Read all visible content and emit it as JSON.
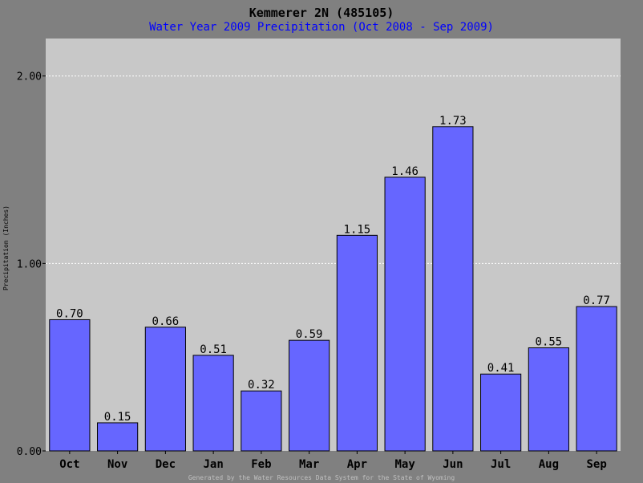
{
  "chart_data": {
    "type": "bar",
    "title": "Kemmerer 2N (485105)",
    "subtitle": "Water Year 2009 Precipitation (Oct 2008 - Sep 2009)",
    "ylabel": "Precipitation (Inches)",
    "footer": "Generated by the Water Resources Data System for the State of Wyoming",
    "categories": [
      "Oct",
      "Nov",
      "Dec",
      "Jan",
      "Feb",
      "Mar",
      "Apr",
      "May",
      "Jun",
      "Jul",
      "Aug",
      "Sep"
    ],
    "values": [
      0.7,
      0.15,
      0.66,
      0.51,
      0.32,
      0.59,
      1.15,
      1.46,
      1.73,
      0.41,
      0.55,
      0.77
    ],
    "value_labels": [
      "0.70",
      "0.15",
      "0.66",
      "0.51",
      "0.32",
      "0.59",
      "1.15",
      "1.46",
      "1.73",
      "0.41",
      "0.55",
      "0.77"
    ],
    "yticks": [
      0,
      1,
      2
    ],
    "ytick_labels": [
      "0.00",
      "1.00",
      "2.00"
    ],
    "ylim": [
      0,
      2.2
    ],
    "grid": true,
    "colors": {
      "background": "#808080",
      "plot_area": "#c8c8c8",
      "bar": "#6666ff",
      "gridline": "#ffffff",
      "title": "#000000",
      "subtitle": "#0000ff",
      "footer": "#c0c0c0"
    }
  }
}
